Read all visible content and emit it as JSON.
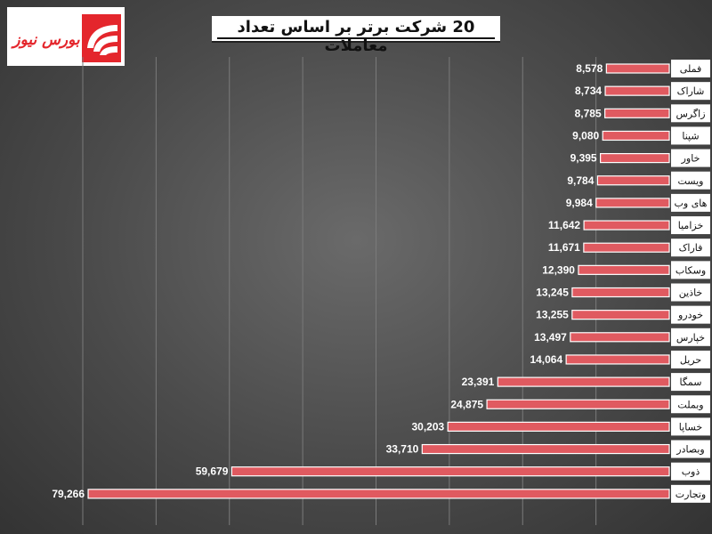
{
  "brand": {
    "logo_text": "بورس نیوز"
  },
  "chart_data": {
    "type": "bar",
    "orientation": "horizontal",
    "title": "20 شرکت برتر بر اساس تعداد معاملات",
    "categories": [
      "فملی",
      "شاراک",
      "زاگرس",
      "شپنا",
      "خاور",
      "ویست",
      "های وب",
      "خزامیا",
      "فاراک",
      "وسکاب",
      "خاذین",
      "خودرو",
      "خپارس",
      "حریل",
      "سمگا",
      "وبملت",
      "خساپا",
      "وبصادر",
      "ذوب",
      "وتجارت"
    ],
    "values": [
      8578,
      8734,
      8785,
      9080,
      9395,
      9784,
      9984,
      11642,
      11671,
      12390,
      13245,
      13255,
      13497,
      14064,
      23391,
      24875,
      30203,
      33710,
      59679,
      79266
    ],
    "value_labels": [
      "8,578",
      "8,734",
      "8,785",
      "9,080",
      "9,395",
      "9,784",
      "9,984",
      "11,642",
      "11,671",
      "12,390",
      "13,245",
      "13,255",
      "13,497",
      "14,064",
      "23,391",
      "24,875",
      "30,203",
      "33,710",
      "59,679",
      "79,266"
    ],
    "xlim": [
      0,
      80000
    ],
    "grid": true,
    "bar_color": "#e05a60",
    "label_box_color": "#ffffff"
  }
}
